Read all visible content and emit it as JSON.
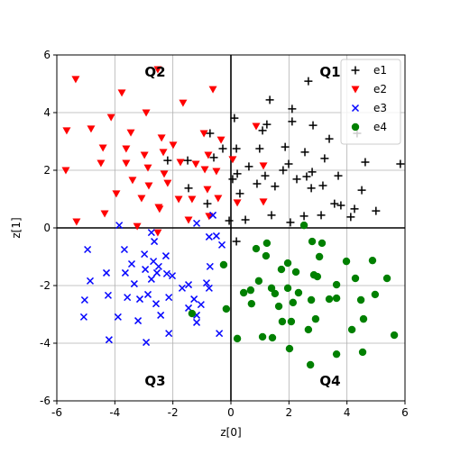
{
  "chart_data": {
    "type": "scatter",
    "xlabel": "z[0]",
    "ylabel": "z[1]",
    "xlim": [
      -6,
      6
    ],
    "ylim": [
      -6,
      6
    ],
    "xticks": [
      -6,
      -4,
      -2,
      0,
      2,
      4,
      6
    ],
    "yticks": [
      -6,
      -4,
      -2,
      0,
      2,
      4,
      6
    ],
    "grid": true,
    "zero_lines": true,
    "legend": "upper right",
    "annotations": [
      "Q1",
      "Q2",
      "Q3",
      "Q4"
    ],
    "series": [
      {
        "name": "e1",
        "color": "#000000",
        "marker": "plus",
        "x": [
          1.34,
          2.67,
          2.11,
          2.83,
          3.39,
          2.11,
          1.24,
          0.12,
          0.19,
          0.99,
          1.09,
          1.87,
          1.99,
          2.55,
          3.23,
          3.7,
          4.63,
          4.51,
          4.26,
          3.79,
          3.17,
          2.61,
          2.8,
          2.27,
          1.8,
          1.52,
          1.18,
          0.9,
          0.62,
          0.06,
          0.31,
          0.5,
          1.4,
          2.05,
          2.52,
          2.77,
          3.11,
          4.13,
          3.57,
          5.0,
          4.35,
          5.84,
          0.22,
          -0.28,
          -0.59,
          0.19,
          -0.06,
          -0.81,
          -2.18,
          -1.49,
          -1.46,
          -0.72
        ],
        "values": [
          4.44,
          5.09,
          4.13,
          3.56,
          3.09,
          3.69,
          3.59,
          3.81,
          2.75,
          2.75,
          3.38,
          2.81,
          2.22,
          2.63,
          2.41,
          1.81,
          2.28,
          1.31,
          0.66,
          0.78,
          1.47,
          1.78,
          1.94,
          1.69,
          2.0,
          1.44,
          1.81,
          1.53,
          2.13,
          1.69,
          1.19,
          0.28,
          0.44,
          0.19,
          0.41,
          1.38,
          0.44,
          0.38,
          0.84,
          0.59,
          3.28,
          2.22,
          1.88,
          2.75,
          2.44,
          -0.47,
          0.25,
          0.84,
          2.34,
          2.34,
          1.38,
          3.28
        ]
      },
      {
        "name": "e2",
        "color": "#ff0000",
        "marker": "triangle_down",
        "x": [
          -5.35,
          -2.52,
          -3.76,
          -4.82,
          -2.92,
          -4.13,
          -4.41,
          -3.61,
          -3.45,
          -2.39,
          -1.65,
          -0.62,
          -0.93,
          -0.34,
          -1.99,
          -2.98,
          -2.33,
          -2.86,
          -3.61,
          -4.48,
          -2.3,
          -1.74,
          -1.21,
          -0.78,
          -0.5,
          -3.39,
          -2.83,
          -2.18,
          -0.9,
          0.06,
          -5.69,
          -3.95,
          -4.35,
          -5.32,
          -3.23,
          -3.08,
          -2.49,
          -1.8,
          -1.34,
          -0.81,
          -0.44,
          0.22,
          -0.75,
          -1.46,
          -2.46,
          1.12,
          0.87,
          -2.52,
          -5.66,
          1.12
        ],
        "values": [
          5.16,
          5.5,
          4.69,
          3.44,
          4.0,
          3.84,
          2.78,
          2.75,
          3.31,
          3.13,
          4.34,
          4.81,
          3.28,
          3.06,
          2.88,
          2.53,
          2.63,
          2.09,
          2.25,
          2.25,
          1.88,
          2.28,
          2.22,
          2.53,
          1.97,
          1.66,
          1.47,
          1.56,
          2.03,
          2.38,
          2.0,
          1.19,
          0.5,
          0.22,
          0.06,
          1.03,
          0.72,
          1.0,
          1.0,
          1.34,
          1.03,
          0.88,
          0.41,
          0.28,
          0.66,
          2.16,
          3.53,
          -0.16,
          3.38,
          0.91
        ]
      },
      {
        "name": "e3",
        "color": "#0000ff",
        "marker": "x",
        "x": [
          -3.85,
          -4.94,
          -4.85,
          -5.04,
          -4.29,
          -4.23,
          -4.2,
          -3.89,
          -3.67,
          -3.64,
          -3.42,
          -3.33,
          -3.57,
          -3.14,
          -2.98,
          -2.95,
          -2.74,
          -2.86,
          -2.58,
          -2.55,
          -2.67,
          -2.49,
          -2.24,
          -2.21,
          -2.14,
          -2.42,
          -2.92,
          -3.2,
          -2.14,
          -2.02,
          -1.68,
          -1.46,
          -1.27,
          -1.18,
          -1.18,
          -1.03,
          -0.84,
          -0.72,
          -0.75,
          -1.18,
          -0.75,
          -0.62,
          -0.5,
          -0.31,
          -0.4,
          -2.74,
          -5.07,
          -1.46,
          -2.64
        ],
        "values": [
          0.09,
          -0.75,
          -1.84,
          -2.5,
          -1.56,
          -2.34,
          -3.88,
          -3.09,
          -0.75,
          -1.56,
          -1.25,
          -1.94,
          -2.41,
          -2.47,
          -0.91,
          -1.44,
          -1.78,
          -2.31,
          -2.63,
          -1.56,
          -1.16,
          -1.34,
          -0.97,
          -1.59,
          -2.41,
          -3.03,
          -3.97,
          -3.22,
          -3.66,
          -1.66,
          -2.09,
          -1.97,
          -2.47,
          -3.03,
          -3.28,
          -2.66,
          -1.91,
          -1.34,
          -2.09,
          0.16,
          -0.31,
          0.44,
          -0.28,
          -0.59,
          -3.66,
          -0.16,
          -3.09,
          -2.78,
          -0.47
        ]
      },
      {
        "name": "e4",
        "color": "#008000",
        "marker": "circle",
        "x": [
          2.52,
          2.8,
          3.14,
          3.05,
          2.86,
          1.96,
          1.24,
          1.74,
          0.87,
          1.4,
          1.21,
          1.52,
          0.96,
          0.44,
          0.68,
          0.22,
          1.09,
          1.43,
          1.77,
          1.65,
          2.14,
          2.33,
          2.24,
          2.77,
          2.92,
          2.67,
          2.74,
          3.64,
          3.39,
          3.64,
          2.98,
          3.98,
          3.64,
          4.29,
          4.88,
          4.48,
          4.97,
          4.57,
          4.17,
          4.54,
          5.38,
          5.63,
          1.96,
          2.02,
          0.71,
          -0.25,
          -1.34,
          -0.16,
          2.08
        ],
        "values": [
          0.09,
          -0.47,
          -0.53,
          -1.0,
          -1.63,
          -1.22,
          -0.53,
          -1.44,
          -0.72,
          -2.09,
          -0.97,
          -2.28,
          -1.84,
          -2.25,
          -2.16,
          -3.84,
          -3.78,
          -3.81,
          -3.25,
          -2.72,
          -2.59,
          -2.25,
          -1.53,
          -2.5,
          -3.16,
          -3.53,
          -4.75,
          -4.38,
          -2.47,
          -1.97,
          -1.69,
          -1.16,
          -2.44,
          -1.75,
          -1.13,
          -2.5,
          -2.31,
          -3.16,
          -3.53,
          -4.31,
          -1.75,
          -3.72,
          -2.09,
          -4.19,
          -2.63,
          -1.28,
          -2.97,
          -2.81,
          -3.25
        ]
      }
    ]
  }
}
